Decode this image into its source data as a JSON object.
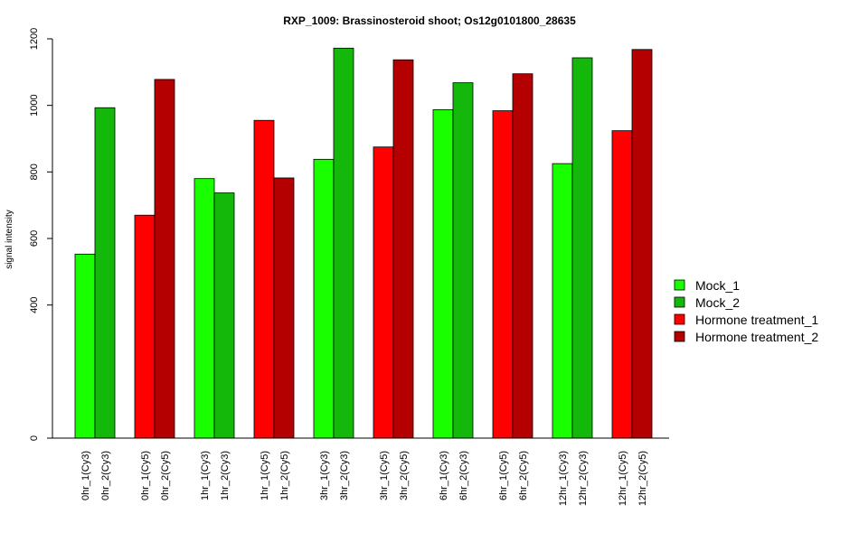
{
  "chart_data": {
    "type": "bar",
    "title": "RXP_1009: Brassinosteroid shoot; Os12g0101800_28635",
    "xlabel": "",
    "ylabel": "signal intensity",
    "ylim": [
      0,
      1200
    ],
    "yticks": [
      0,
      400,
      600,
      800,
      1000,
      1200
    ],
    "grid": false,
    "legend_position": "right",
    "series": [
      {
        "name": "Mock_1",
        "color": "#19ff00"
      },
      {
        "name": "Mock_2",
        "color": "#13b80a"
      },
      {
        "name": "Hormone treatment_1",
        "color": "#ff0000"
      },
      {
        "name": "Hormone treatment_2",
        "color": "#b40000"
      }
    ],
    "bars": [
      {
        "label": "0hr_1(Cy3)",
        "value": 553,
        "series": 0
      },
      {
        "label": "0hr_2(Cy3)",
        "value": 993,
        "series": 1
      },
      {
        "label": "0hr_1(Cy5)",
        "value": 670,
        "series": 2
      },
      {
        "label": "0hr_2(Cy5)",
        "value": 1078,
        "series": 3
      },
      {
        "label": "1hr_1(Cy3)",
        "value": 780,
        "series": 0
      },
      {
        "label": "1hr_2(Cy3)",
        "value": 737,
        "series": 1
      },
      {
        "label": "1hr_1(Cy5)",
        "value": 955,
        "series": 2
      },
      {
        "label": "1hr_2(Cy5)",
        "value": 782,
        "series": 3
      },
      {
        "label": "3hr_1(Cy3)",
        "value": 838,
        "series": 0
      },
      {
        "label": "3hr_2(Cy3)",
        "value": 1172,
        "series": 1
      },
      {
        "label": "3hr_1(Cy5)",
        "value": 875,
        "series": 2
      },
      {
        "label": "3hr_2(Cy5)",
        "value": 1137,
        "series": 3
      },
      {
        "label": "6hr_1(Cy3)",
        "value": 987,
        "series": 0
      },
      {
        "label": "6hr_2(Cy3)",
        "value": 1068,
        "series": 1
      },
      {
        "label": "6hr_1(Cy5)",
        "value": 984,
        "series": 2
      },
      {
        "label": "6hr_2(Cy5)",
        "value": 1095,
        "series": 3
      },
      {
        "label": "12hr_1(Cy3)",
        "value": 825,
        "series": 0
      },
      {
        "label": "12hr_2(Cy3)",
        "value": 1143,
        "series": 1
      },
      {
        "label": "12hr_1(Cy5)",
        "value": 924,
        "series": 2
      },
      {
        "label": "12hr_2(Cy5)",
        "value": 1168,
        "series": 3
      }
    ]
  }
}
